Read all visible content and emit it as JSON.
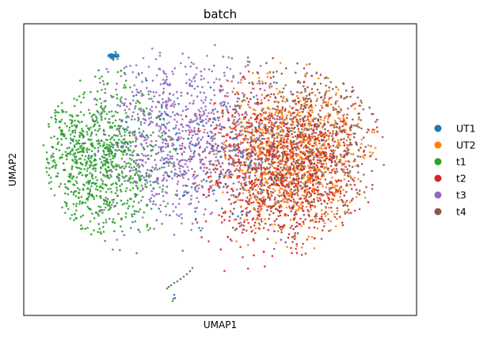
{
  "chart_data": {
    "type": "scatter",
    "title": "batch",
    "xlabel": "UMAP1",
    "ylabel": "UMAP2",
    "ticks": "none",
    "grid": false,
    "legend_position": "right",
    "series": [
      {
        "name": "UT1",
        "color": "#1f77b4",
        "count": 180,
        "region": "whole embedding, small cluster at top-left edge"
      },
      {
        "name": "UT2",
        "color": "#ff7f0e",
        "count": 900,
        "region": "right half"
      },
      {
        "name": "t1",
        "color": "#2ca02c",
        "count": 900,
        "region": "left side"
      },
      {
        "name": "t2",
        "color": "#d62728",
        "count": 900,
        "region": "right half"
      },
      {
        "name": "t3",
        "color": "#9467bd",
        "count": 900,
        "region": "centre and upper-left"
      },
      {
        "name": "t4",
        "color": "#8c564b",
        "count": 900,
        "region": "right half"
      }
    ]
  }
}
